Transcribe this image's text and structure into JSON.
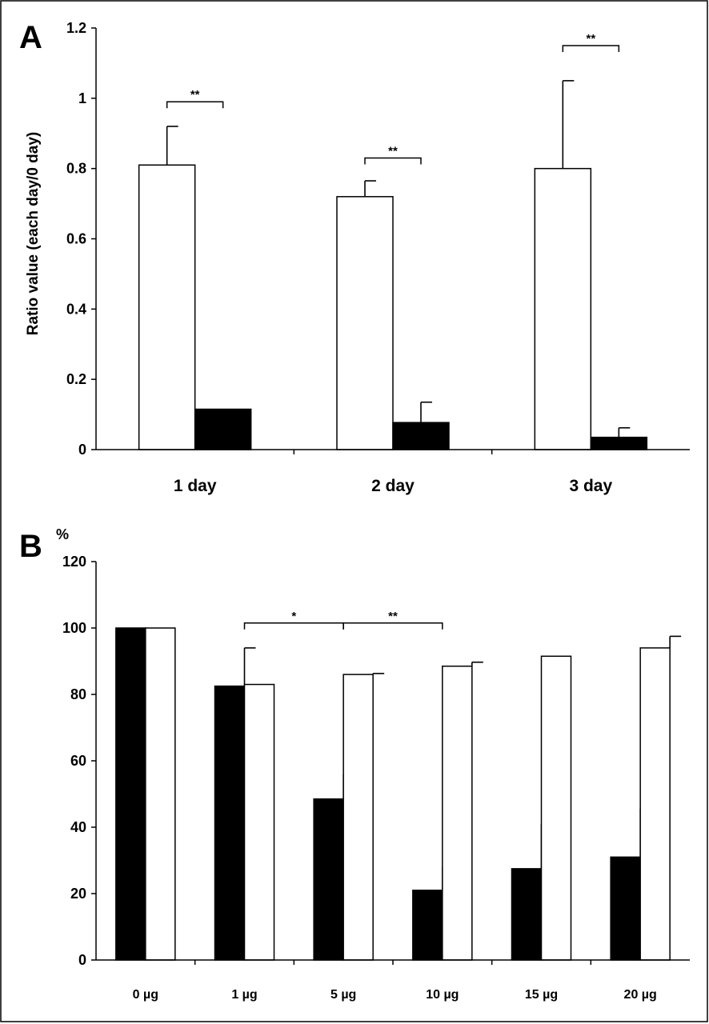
{
  "chart_data": [
    {
      "panel": "A",
      "type": "bar",
      "ylabel": "Ratio value (each day/0 day)",
      "xlabel": "",
      "ylim": [
        0,
        1.2
      ],
      "yticks": [
        "0",
        "0.2",
        "0.4",
        "0.6",
        "0.8",
        "1",
        "1.2"
      ],
      "categories": [
        "1 day",
        "2 day",
        "3 day"
      ],
      "series": [
        {
          "fill": "#ffffff",
          "values": [
            0.81,
            0.72,
            0.8
          ],
          "errors": [
            0.11,
            0.045,
            0.25
          ]
        },
        {
          "fill": "#000000",
          "values": [
            0.115,
            0.077,
            0.035
          ],
          "errors": [
            0,
            0.058,
            0.027
          ]
        }
      ],
      "annotations": [
        {
          "category": "1 day",
          "text": "**",
          "y": 0.99
        },
        {
          "category": "2 day",
          "text": "**",
          "y": 0.83
        },
        {
          "category": "3 day",
          "text": "**",
          "y": 1.15
        }
      ]
    },
    {
      "panel": "B",
      "type": "bar",
      "unit_label": "%",
      "xlabel": "",
      "ylabel": "",
      "ylim": [
        0,
        120
      ],
      "yticks": [
        "0",
        "20",
        "40",
        "60",
        "80",
        "100",
        "120"
      ],
      "categories": [
        "0 µg",
        "1 µg",
        "5 µg",
        "10 µg",
        "15 µg",
        "20 µg"
      ],
      "series": [
        {
          "fill": "#000000",
          "values": [
            100,
            82.5,
            48.5,
            21,
            27.5,
            31
          ],
          "errors": [
            0,
            11.5,
            7.5,
            7,
            13.5,
            14.5
          ]
        },
        {
          "fill": "#ffffff",
          "values": [
            100,
            83,
            86,
            88.5,
            91.5,
            94
          ],
          "errors": [
            0,
            0,
            0.3,
            1.2,
            0,
            3.5
          ]
        }
      ],
      "annotations": [
        {
          "from": "1 µg",
          "to": "5 µg",
          "text": "*",
          "y": 101.5
        },
        {
          "from": "5 µg",
          "to": "10 µg",
          "text": "**",
          "y": 101.5
        }
      ]
    }
  ],
  "labels": {
    "panel_a": "A",
    "panel_b": "B",
    "percent": "%"
  }
}
